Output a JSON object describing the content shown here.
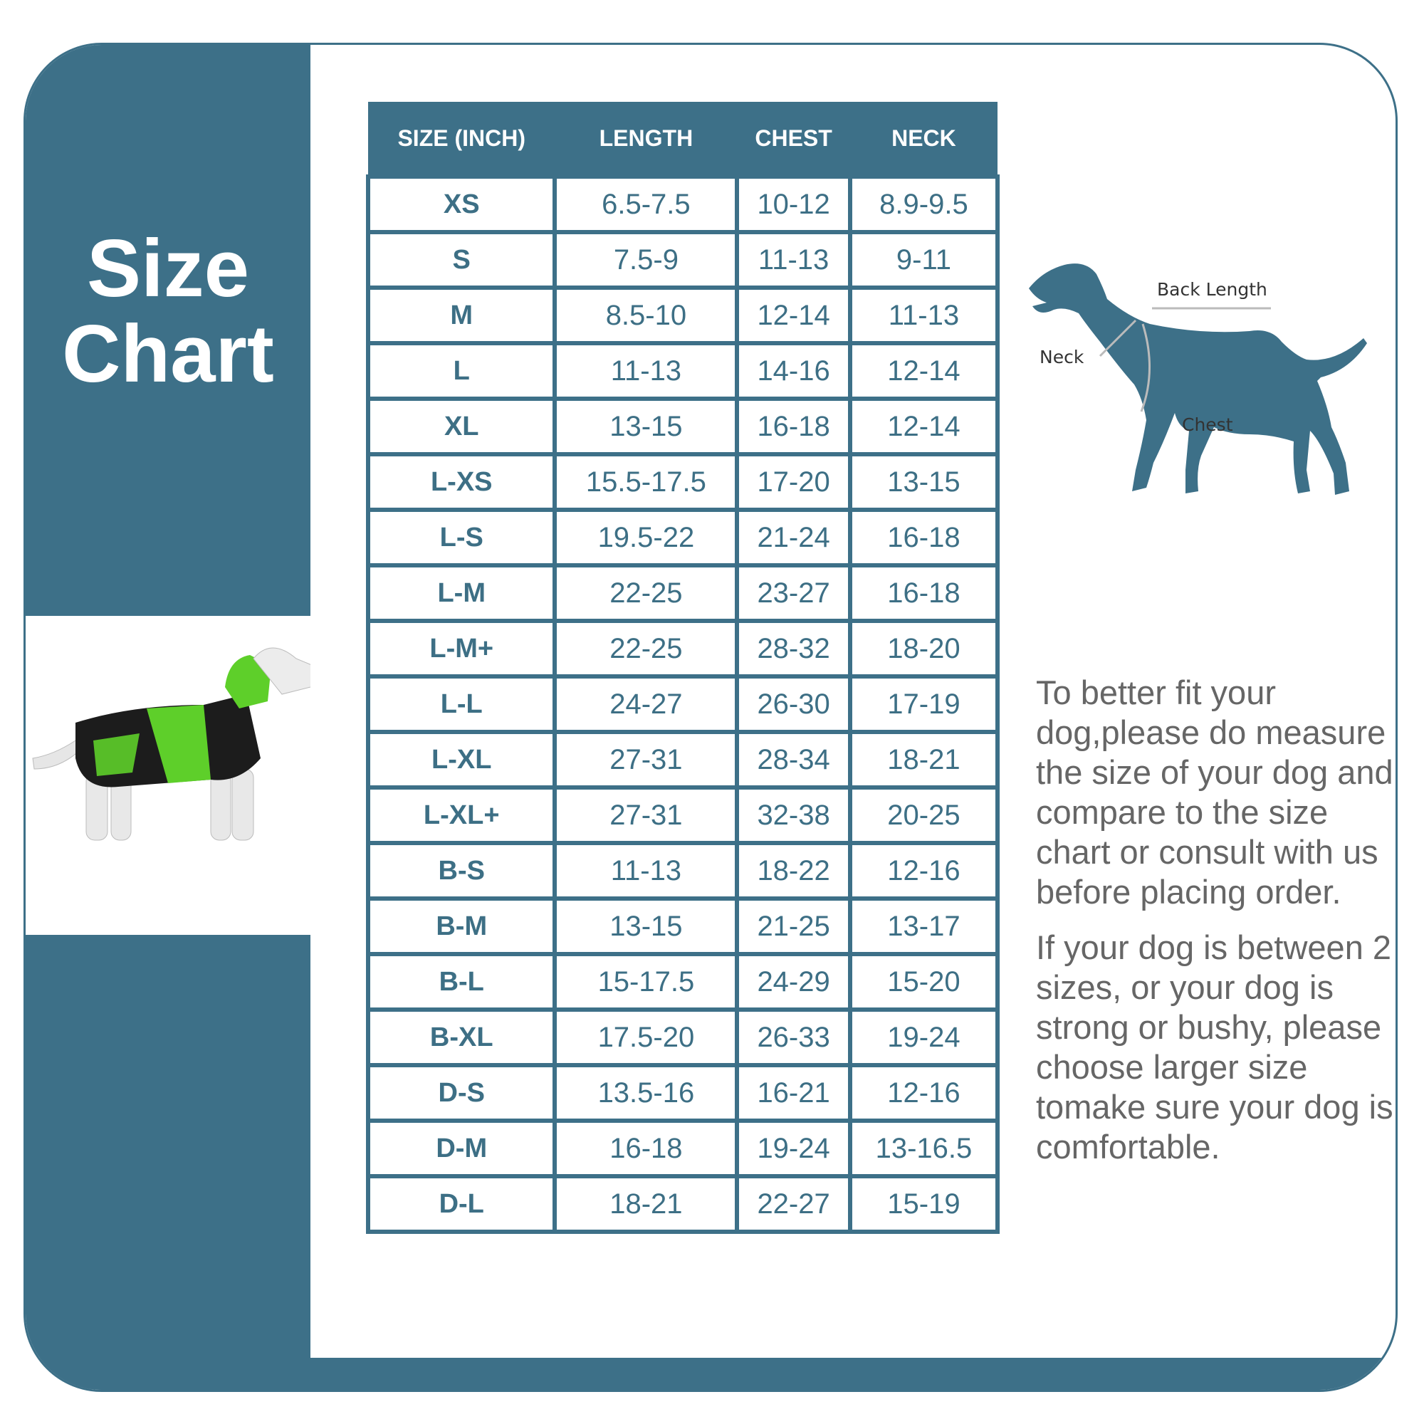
{
  "title": {
    "line1": "Size",
    "line2": "Chart"
  },
  "colors": {
    "primary": "#3d7088",
    "text": "#3d6f85",
    "tips_text": "#666666",
    "coat_green": "#5ecf2a"
  },
  "table": {
    "headers": [
      "SIZE (INCH)",
      "LENGTH",
      "CHEST",
      "NECK"
    ],
    "rows": [
      [
        "XS",
        "6.5-7.5",
        "10-12",
        "8.9-9.5"
      ],
      [
        "S",
        "7.5-9",
        "11-13",
        "9-11"
      ],
      [
        "M",
        "8.5-10",
        "12-14",
        "11-13"
      ],
      [
        "L",
        "11-13",
        "14-16",
        "12-14"
      ],
      [
        "XL",
        "13-15",
        "16-18",
        "12-14"
      ],
      [
        "L-XS",
        "15.5-17.5",
        "17-20",
        "13-15"
      ],
      [
        "L-S",
        "19.5-22",
        "21-24",
        "16-18"
      ],
      [
        "L-M",
        "22-25",
        "23-27",
        "16-18"
      ],
      [
        "L-M+",
        "22-25",
        "28-32",
        "18-20"
      ],
      [
        "L-L",
        "24-27",
        "26-30",
        "17-19"
      ],
      [
        "L-XL",
        "27-31",
        "28-34",
        "18-21"
      ],
      [
        "L-XL+",
        "27-31",
        "32-38",
        "20-25"
      ],
      [
        "B-S",
        "11-13",
        "18-22",
        "12-16"
      ],
      [
        "B-M",
        "13-15",
        "21-25",
        "13-17"
      ],
      [
        "B-L",
        "15-17.5",
        "24-29",
        "15-20"
      ],
      [
        "B-XL",
        "17.5-20",
        "26-33",
        "19-24"
      ],
      [
        "D-S",
        "13.5-16",
        "16-21",
        "12-16"
      ],
      [
        "D-M",
        "16-18",
        "19-24",
        "13-16.5"
      ],
      [
        "D-L",
        "18-21",
        "22-27",
        "15-19"
      ]
    ]
  },
  "diagram": {
    "back_length": "Back  Length",
    "neck": "Neck",
    "chest": "Chest"
  },
  "tips": [
    "To better fit your dog,please do measure the size of your dog and compare to the size chart or consult with us before placing order.",
    "If your dog is between 2 sizes, or your dog is strong or bushy, please choose larger size tomake sure your dog is comfortable."
  ]
}
